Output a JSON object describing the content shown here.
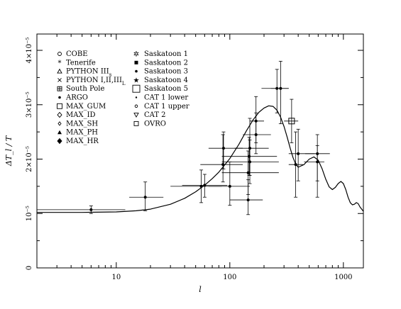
{
  "chart_data": {
    "type": "scatter",
    "xlabel": "l",
    "ylabel": "ΔT_l / T",
    "x_scale": "log",
    "xlim": [
      2,
      1500
    ],
    "ylim": [
      0,
      4.3e-05
    ],
    "grid": false,
    "legend_position": "top-left",
    "x_ticks": [
      {
        "value": 10,
        "label": "10"
      },
      {
        "value": 100,
        "label": "100"
      },
      {
        "value": 1000,
        "label": "1000"
      }
    ],
    "y_ticks": [
      {
        "value": 0,
        "label": "0"
      },
      {
        "value": 1e-05,
        "label": "10⁻⁵"
      },
      {
        "value": 2e-05,
        "label": "2×10⁻⁵"
      },
      {
        "value": 3e-05,
        "label": "3×10⁻⁵"
      },
      {
        "value": 4e-05,
        "label": "4×10⁻⁵"
      }
    ],
    "legend": {
      "col1": [
        "COBE",
        "Tenerife",
        "PYTHON III_s",
        "PYTHON I,II,III_L",
        "South Pole",
        "ARGO",
        "MAX_GUM",
        "MAX_ID",
        "MAX_SH",
        "MAX_PH",
        "MAX_HR"
      ],
      "col2": [
        "Saskatoon 1",
        "Saskatoon 2",
        "Saskatoon 3",
        "Saskatoon 4",
        "Saskatoon 5",
        "CAT 1 lower",
        "CAT 1 upper",
        "CAT 2",
        "OVRO"
      ]
    },
    "model_curve": {
      "x": [
        2,
        5,
        10,
        15,
        20,
        30,
        40,
        50,
        60,
        70,
        80,
        100,
        120,
        140,
        160,
        180,
        200,
        220,
        240,
        260,
        280,
        300,
        320,
        340,
        360,
        380,
        400,
        450,
        500,
        550,
        600,
        650,
        700,
        750,
        800,
        850,
        900,
        950,
        1000,
        1050,
        1100,
        1150,
        1200,
        1250,
        1300,
        1350,
        1400,
        1500
      ],
      "y": [
        1.02e-05,
        1.02e-05,
        1.03e-05,
        1.05e-05,
        1.08e-05,
        1.17e-05,
        1.28e-05,
        1.4e-05,
        1.52e-05,
        1.64e-05,
        1.76e-05,
        2.01e-05,
        2.27e-05,
        2.52e-05,
        2.72e-05,
        2.86e-05,
        2.94e-05,
        2.98e-05,
        2.97e-05,
        2.9e-05,
        2.77e-05,
        2.6e-05,
        2.4e-05,
        2.2e-05,
        2.03e-05,
        1.91e-05,
        1.85e-05,
        1.9e-05,
        2e-05,
        2.04e-05,
        1.98e-05,
        1.82e-05,
        1.63e-05,
        1.49e-05,
        1.44e-05,
        1.48e-05,
        1.55e-05,
        1.59e-05,
        1.55e-05,
        1.44e-05,
        1.3e-05,
        1.2e-05,
        1.16e-05,
        1.17e-05,
        1.2e-05,
        1.18e-05,
        1.12e-05,
        1.04e-05
      ]
    },
    "points": [
      {
        "x": 6,
        "y": 1.07e-05,
        "xlo": 2,
        "xhi": 12,
        "ylo": 1e-05,
        "yhi": 1.14e-05
      },
      {
        "x": 18,
        "y": 1.3e-05,
        "xlo": 13,
        "xhi": 26,
        "ylo": 1.05e-05,
        "yhi": 1.58e-05
      },
      {
        "x": 56,
        "y": 1.5e-05,
        "xlo": 30,
        "xhi": 85,
        "ylo": 1.2e-05,
        "yhi": 1.8e-05
      },
      {
        "x": 60,
        "y": 1.52e-05,
        "xlo": 38,
        "xhi": 95,
        "ylo": 1.3e-05,
        "yhi": 1.72e-05
      },
      {
        "x": 87,
        "y": 1.9e-05,
        "xlo": 55,
        "xhi": 130,
        "ylo": 1.58e-05,
        "yhi": 2.45e-05
      },
      {
        "x": 88,
        "y": 2.2e-05,
        "xlo": 65,
        "xhi": 130,
        "ylo": 1.82e-05,
        "yhi": 2.5e-05
      },
      {
        "x": 100,
        "y": 1.5e-05,
        "xlo": 65,
        "xhi": 150,
        "ylo": 1.15e-05,
        "yhi": 1.95e-05
      },
      {
        "x": 145,
        "y": 1.25e-05,
        "xlo": 100,
        "xhi": 195,
        "ylo": 9.8e-06,
        "yhi": 1.62e-05
      },
      {
        "x": 145,
        "y": 1.75e-05,
        "xlo": 85,
        "xhi": 270,
        "ylo": 1.35e-05,
        "yhi": 2.15e-05
      },
      {
        "x": 150,
        "y": 1.95e-05,
        "xlo": 85,
        "xhi": 270,
        "ylo": 1.55e-05,
        "yhi": 2.35e-05
      },
      {
        "x": 148,
        "y": 2.05e-05,
        "xlo": 85,
        "xhi": 260,
        "ylo": 1.7e-05,
        "yhi": 2.4e-05
      },
      {
        "x": 150,
        "y": 2.2e-05,
        "xlo": 110,
        "xhi": 220,
        "ylo": 1.7e-05,
        "yhi": 2.75e-05
      },
      {
        "x": 170,
        "y": 2.45e-05,
        "xlo": 130,
        "xhi": 230,
        "ylo": 2.1e-05,
        "yhi": 2.85e-05
      },
      {
        "x": 170,
        "y": 2.7e-05,
        "xlo": 150,
        "xhi": 200,
        "ylo": 2.3e-05,
        "yhi": 3.15e-05
      },
      {
        "x": 260,
        "y": 3.3e-05,
        "xlo": 190,
        "xhi": 330,
        "ylo": 2.85e-05,
        "yhi": 3.65e-05
      },
      {
        "x": 280,
        "y": 3.3e-05,
        "xlo": 230,
        "xhi": 330,
        "ylo": 2.65e-05,
        "yhi": 3.8e-05
      },
      {
        "x": 350,
        "y": 2.7e-05,
        "xlo": 300,
        "xhi": 400,
        "ylo": 2.3e-05,
        "yhi": 3.1e-05
      },
      {
        "x": 380,
        "y": 1.9e-05,
        "xlo": 330,
        "xhi": 440,
        "ylo": 1.3e-05,
        "yhi": 2.5e-05
      },
      {
        "x": 400,
        "y": 2.1e-05,
        "xlo": 330,
        "xhi": 560,
        "ylo": 1.6e-05,
        "yhi": 2.55e-05
      },
      {
        "x": 590,
        "y": 2.1e-05,
        "xlo": 460,
        "xhi": 760,
        "ylo": 1.6e-05,
        "yhi": 2.45e-05
      },
      {
        "x": 590,
        "y": 1.95e-05,
        "xlo": 450,
        "xhi": 680,
        "ylo": 1.3e-05,
        "yhi": 2.25e-05
      }
    ]
  }
}
